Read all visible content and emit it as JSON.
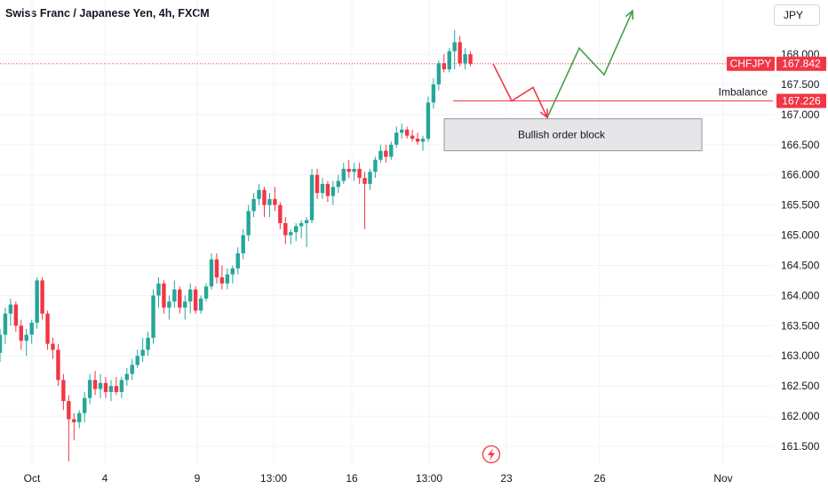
{
  "header": {
    "title": "Swiss Franc / Japanese Yen, 4h, FXCM",
    "currency": "JPY"
  },
  "colors": {
    "up": "#26a69a",
    "down": "#f23645",
    "bullish_path": "#43a047",
    "bearish_path": "#f23645",
    "price_line": "#f23645",
    "box_fill": "#e6e6e8",
    "box_stroke": "#9598a1"
  },
  "price_tag": {
    "symbol": "CHFJPY",
    "value": "167.842",
    "price": 167.842
  },
  "imbalance_tag": {
    "label": "Imbalance",
    "value": "167.226",
    "price": 167.226
  },
  "order_block": {
    "label": "Bullish order block",
    "top": 166.93,
    "bottom": 166.4
  },
  "chart_data": {
    "type": "candlestick",
    "title": "Swiss Franc / Japanese Yen, 4h, FXCM",
    "y_unit": "JPY",
    "ylim": [
      161.2,
      168.9
    ],
    "y_ticks": [
      "161.500",
      "162.000",
      "162.500",
      "163.000",
      "163.500",
      "164.000",
      "164.500",
      "165.000",
      "165.500",
      "166.000",
      "166.500",
      "167.000",
      "167.500",
      "168.000"
    ],
    "x_labels": [
      "Oct",
      "4",
      "9",
      "13:00",
      "16",
      "13:00",
      "23",
      "26",
      "Nov"
    ],
    "candles": [
      [
        163.05,
        163.45,
        162.9,
        163.35
      ],
      [
        163.35,
        163.8,
        163.2,
        163.7
      ],
      [
        163.7,
        163.95,
        163.5,
        163.85
      ],
      [
        163.85,
        163.9,
        163.4,
        163.5
      ],
      [
        163.5,
        163.6,
        163.1,
        163.25
      ],
      [
        163.25,
        163.45,
        163.0,
        163.35
      ],
      [
        163.35,
        163.6,
        163.2,
        163.55
      ],
      [
        163.55,
        164.3,
        163.45,
        164.25
      ],
      [
        164.25,
        164.3,
        163.6,
        163.7
      ],
      [
        163.7,
        163.75,
        163.1,
        163.2
      ],
      [
        163.2,
        163.3,
        162.95,
        163.1
      ],
      [
        163.1,
        163.2,
        162.5,
        162.6
      ],
      [
        162.6,
        162.7,
        162.1,
        162.25
      ],
      [
        162.25,
        162.35,
        161.25,
        161.95
      ],
      [
        161.95,
        162.05,
        161.6,
        161.9
      ],
      [
        161.9,
        162.1,
        161.8,
        162.05
      ],
      [
        162.05,
        162.4,
        161.9,
        162.3
      ],
      [
        162.3,
        162.7,
        162.2,
        162.6
      ],
      [
        162.6,
        162.75,
        162.35,
        162.45
      ],
      [
        162.45,
        162.7,
        162.3,
        162.55
      ],
      [
        162.55,
        162.65,
        162.3,
        162.4
      ],
      [
        162.4,
        162.6,
        162.25,
        162.5
      ],
      [
        162.5,
        162.65,
        162.35,
        162.4
      ],
      [
        162.4,
        162.65,
        162.3,
        162.6
      ],
      [
        162.6,
        162.8,
        162.5,
        162.7
      ],
      [
        162.7,
        162.95,
        162.6,
        162.85
      ],
      [
        162.85,
        163.1,
        162.8,
        163.0
      ],
      [
        163.0,
        163.3,
        162.9,
        163.1
      ],
      [
        163.1,
        163.4,
        163.0,
        163.3
      ],
      [
        163.3,
        164.1,
        163.2,
        164.0
      ],
      [
        164.0,
        164.3,
        163.8,
        164.2
      ],
      [
        164.2,
        164.25,
        163.7,
        163.8
      ],
      [
        163.8,
        164.0,
        163.6,
        163.9
      ],
      [
        163.9,
        164.25,
        163.8,
        164.1
      ],
      [
        164.1,
        164.15,
        163.7,
        163.8
      ],
      [
        163.8,
        164.0,
        163.6,
        163.9
      ],
      [
        163.9,
        164.2,
        163.7,
        164.1
      ],
      [
        164.1,
        164.15,
        163.7,
        163.75
      ],
      [
        163.75,
        164.0,
        163.7,
        163.95
      ],
      [
        163.95,
        164.2,
        163.9,
        164.15
      ],
      [
        164.15,
        164.7,
        164.1,
        164.6
      ],
      [
        164.6,
        164.7,
        164.2,
        164.3
      ],
      [
        164.3,
        164.5,
        164.1,
        164.2
      ],
      [
        164.2,
        164.45,
        164.1,
        164.35
      ],
      [
        164.35,
        164.5,
        164.2,
        164.45
      ],
      [
        164.45,
        164.8,
        164.35,
        164.7
      ],
      [
        164.7,
        165.1,
        164.6,
        165.0
      ],
      [
        165.0,
        165.5,
        164.9,
        165.4
      ],
      [
        165.4,
        165.7,
        165.3,
        165.6
      ],
      [
        165.6,
        165.85,
        165.5,
        165.75
      ],
      [
        165.75,
        165.8,
        165.3,
        165.5
      ],
      [
        165.5,
        165.7,
        165.3,
        165.6
      ],
      [
        165.6,
        165.8,
        165.4,
        165.5
      ],
      [
        165.5,
        165.55,
        165.1,
        165.2
      ],
      [
        165.2,
        165.3,
        164.85,
        165.0
      ],
      [
        165.0,
        165.1,
        164.85,
        165.05
      ],
      [
        165.05,
        165.2,
        164.9,
        165.15
      ],
      [
        165.15,
        165.25,
        164.95,
        165.2
      ],
      [
        165.2,
        165.3,
        164.8,
        165.25
      ],
      [
        165.25,
        166.1,
        165.2,
        166.0
      ],
      [
        166.0,
        166.1,
        165.6,
        165.7
      ],
      [
        165.7,
        165.95,
        165.6,
        165.85
      ],
      [
        165.85,
        165.9,
        165.55,
        165.65
      ],
      [
        165.65,
        165.9,
        165.5,
        165.8
      ],
      [
        165.8,
        166.0,
        165.7,
        165.9
      ],
      [
        165.9,
        166.2,
        165.85,
        166.1
      ],
      [
        166.1,
        166.25,
        165.95,
        166.05
      ],
      [
        166.05,
        166.2,
        165.9,
        166.1
      ],
      [
        166.1,
        166.2,
        165.85,
        165.95
      ],
      [
        165.95,
        166.05,
        165.1,
        165.85
      ],
      [
        165.85,
        166.1,
        165.75,
        166.05
      ],
      [
        166.05,
        166.3,
        165.95,
        166.25
      ],
      [
        166.25,
        166.5,
        166.2,
        166.4
      ],
      [
        166.4,
        166.5,
        166.2,
        166.3
      ],
      [
        166.3,
        166.55,
        166.25,
        166.5
      ],
      [
        166.5,
        166.8,
        166.45,
        166.7
      ],
      [
        166.7,
        166.85,
        166.6,
        166.75
      ],
      [
        166.75,
        166.8,
        166.6,
        166.65
      ],
      [
        166.65,
        166.75,
        166.55,
        166.6
      ],
      [
        166.6,
        166.7,
        166.5,
        166.55
      ],
      [
        166.55,
        166.65,
        166.4,
        166.6
      ],
      [
        166.6,
        167.3,
        166.55,
        167.2
      ],
      [
        167.2,
        167.6,
        167.1,
        167.5
      ],
      [
        167.5,
        167.9,
        167.4,
        167.85
      ],
      [
        167.85,
        168.0,
        167.7,
        167.75
      ],
      [
        167.75,
        168.1,
        167.7,
        168.05
      ],
      [
        168.05,
        168.4,
        167.75,
        168.2
      ],
      [
        168.2,
        168.3,
        167.8,
        167.85
      ],
      [
        167.85,
        168.1,
        167.75,
        168.0
      ],
      [
        168.0,
        168.05,
        167.8,
        167.842
      ]
    ],
    "projection_bearish": [
      [
        555,
        167.842
      ],
      [
        576,
        167.226
      ],
      [
        600,
        167.45
      ],
      [
        616,
        166.95
      ]
    ],
    "projection_bullish": [
      [
        616,
        166.95
      ],
      [
        652,
        168.1
      ],
      [
        680,
        167.66
      ],
      [
        712,
        168.72
      ]
    ]
  }
}
